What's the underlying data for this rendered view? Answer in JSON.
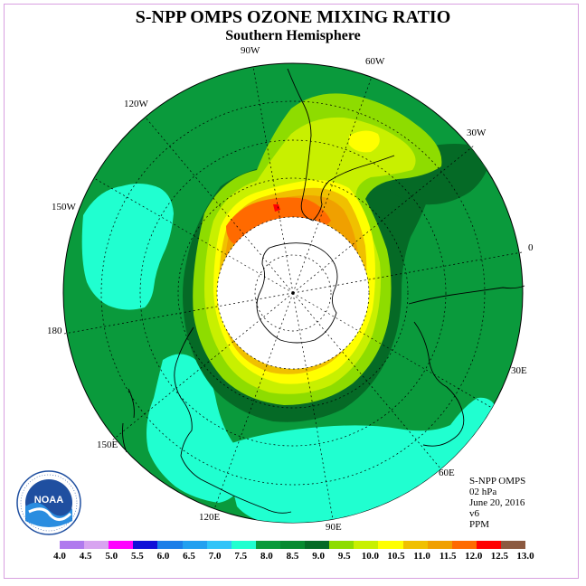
{
  "title": "S-NPP OMPS OZONE MIXING RATIO",
  "subtitle": "Southern Hemisphere",
  "longitude_labels": [
    "90W",
    "60W",
    "30W",
    "0",
    "30E",
    "60E",
    "90E",
    "120E",
    "150E",
    "180",
    "150W",
    "120W"
  ],
  "info": {
    "instrument": "S-NPP OMPS",
    "level": "02 hPa",
    "date": "June 20, 2016",
    "version": "v6",
    "units": "PPM"
  },
  "logo": {
    "text": "NOAA",
    "ring_text": "NATIONAL OCEANIC AND ATMOSPHERIC ADMINISTRATION · U.S. DEPARTMENT OF COMMERCE"
  },
  "colorbar": {
    "ticks": [
      "4.0",
      "4.5",
      "5.0",
      "5.5",
      "6.0",
      "6.5",
      "7.0",
      "7.5",
      "8.0",
      "8.5",
      "9.0",
      "9.5",
      "10.0",
      "10.5",
      "11.0",
      "11.5",
      "12.0",
      "12.5",
      "13.0"
    ],
    "colors": [
      "#b07aee",
      "#d8a4f0",
      "#ff00ff",
      "#1010d8",
      "#1c7ee8",
      "#22a0f0",
      "#30c4f8",
      "#20ffd0",
      "#0a9a3c",
      "#078a30",
      "#056a26",
      "#8edc00",
      "#c8f000",
      "#ffff00",
      "#f0c000",
      "#f0a000",
      "#ff6a00",
      "#ff0000",
      "#8c5a40"
    ]
  }
}
